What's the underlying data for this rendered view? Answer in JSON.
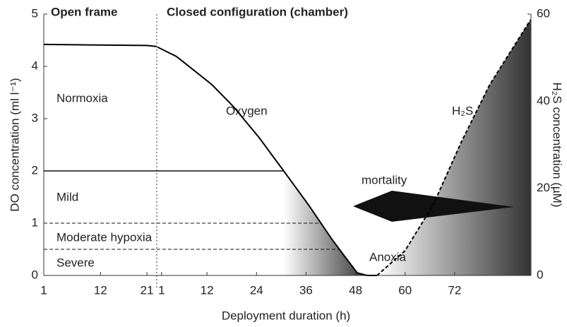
{
  "chart_data": {
    "type": "line",
    "xlabel": "Deployment duration (h)",
    "ylabel": "DO concentration (ml l⁻¹)",
    "y2label": "H₂S concentration (µM)",
    "ylim": [
      0,
      5
    ],
    "yticks": [
      0,
      1,
      2,
      3,
      4,
      5
    ],
    "y2lim": [
      0,
      60
    ],
    "y2ticks": [
      0,
      20,
      40,
      60
    ],
    "phases": [
      {
        "title": "Open frame",
        "xlim": [
          1,
          22.9
        ],
        "xticks": [
          1,
          12,
          21
        ]
      },
      {
        "title": "Closed configuration (chamber)",
        "xlim": [
          0,
          90.5
        ],
        "xticks": [
          1,
          12,
          24,
          36,
          48,
          60,
          72
        ]
      }
    ],
    "series": [
      {
        "name": "Oxygen",
        "phase": 0,
        "color": "#000000",
        "x": [
          1,
          10,
          21,
          22.9
        ],
        "values": [
          4.42,
          4.41,
          4.4,
          4.38
        ]
      },
      {
        "name": "Oxygen",
        "phase": 1,
        "color": "#000000",
        "x": [
          0,
          4.6,
          13.2,
          18.3,
          24.6,
          30.3,
          36.6,
          42.2,
          45.6,
          48.4,
          50.8,
          53.2
        ],
        "values": [
          4.37,
          4.19,
          3.65,
          3.24,
          2.64,
          2.03,
          1.35,
          0.7,
          0.34,
          0.05,
          0,
          0
        ]
      },
      {
        "name": "H₂S",
        "phase": 1,
        "axis": "y2",
        "color": "#000000",
        "dashed": true,
        "x": [
          53.2,
          60,
          66.8,
          73.7,
          80.5,
          90.4
        ],
        "values": [
          0,
          5.7,
          16.2,
          30.8,
          43.8,
          58.7
        ]
      }
    ],
    "thresholds": [
      {
        "value": 2,
        "dashed": false
      },
      {
        "value": 1,
        "dashed": true
      },
      {
        "value": 0.5,
        "dashed": true
      }
    ],
    "annotations": [
      "Normoxia",
      "Mild",
      "Moderate hypoxia",
      "Severe",
      "Anoxia",
      "mortality"
    ]
  }
}
